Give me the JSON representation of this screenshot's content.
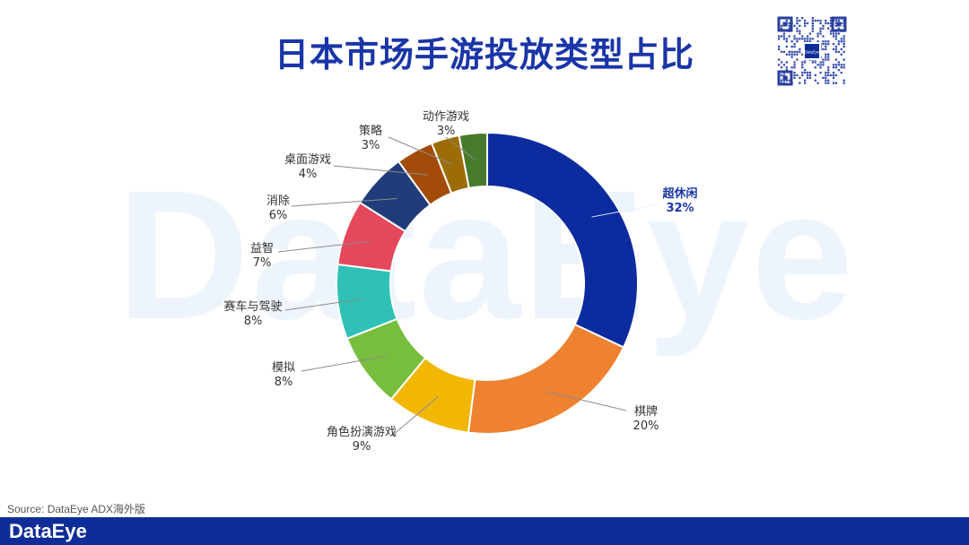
{
  "title": "日本市场手游投放类型占比",
  "watermark": "DataEye",
  "source": "Source: DataEye ADX海外版",
  "footer": {
    "logo": "DataEye"
  },
  "qr": {
    "logo_text": "DataEye"
  },
  "colors": {
    "title": "#1a35a8",
    "footer_bar": "#0f2d98",
    "highlight_label": "#1a35a8"
  },
  "chart_data": {
    "type": "pie",
    "donut": true,
    "title": "日本市场手游投放类型占比",
    "categories": [
      "超休闲",
      "棋牌",
      "角色扮演游戏",
      "模拟",
      "赛车与驾驶",
      "益智",
      "消除",
      "桌面游戏",
      "策略",
      "动作游戏"
    ],
    "values": [
      32,
      20,
      9,
      8,
      8,
      7,
      6,
      4,
      3,
      3
    ],
    "labels": [
      "32%",
      "20%",
      "9%",
      "8%",
      "8%",
      "7%",
      "6%",
      "4%",
      "3%",
      "3%"
    ],
    "colors": [
      "#0c2b9e",
      "#ee8230",
      "#f2b705",
      "#78be3e",
      "#2fc1b7",
      "#e5485c",
      "#203c7a",
      "#a34c0a",
      "#9c6d05",
      "#477a2a"
    ],
    "highlight": "超休闲"
  }
}
